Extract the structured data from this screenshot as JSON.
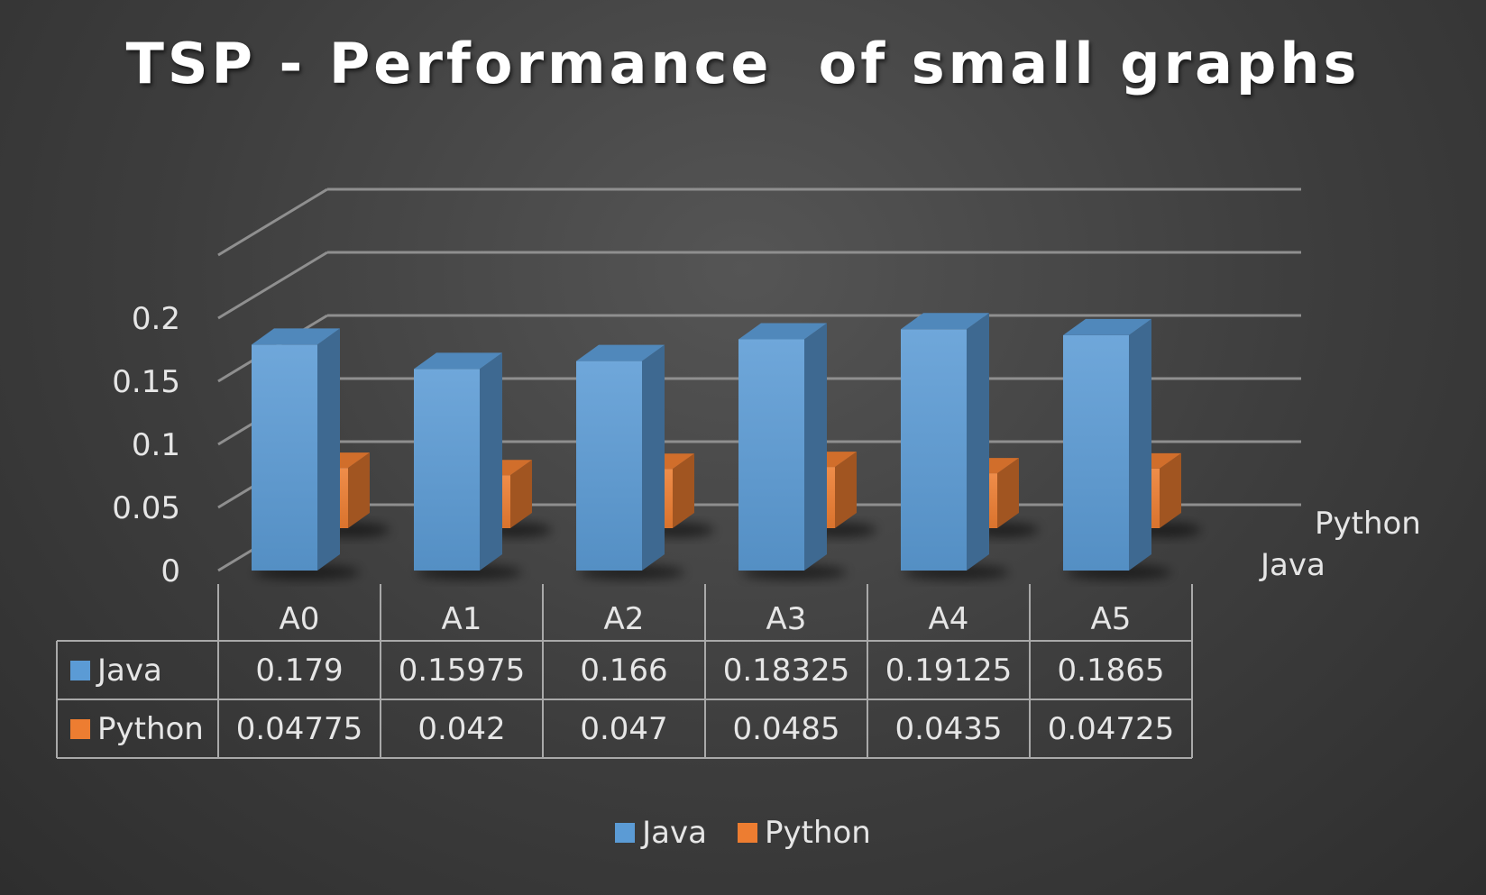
{
  "chart_data": {
    "type": "bar",
    "title": "TSP - Performance  of small graphs",
    "categories": [
      "A0",
      "A1",
      "A2",
      "A3",
      "A4",
      "A5"
    ],
    "series": [
      {
        "name": "Java",
        "values": [
          0.179,
          0.15975,
          0.166,
          0.18325,
          0.19125,
          0.1865
        ],
        "color": "#5b9bd5"
      },
      {
        "name": "Python",
        "values": [
          0.04775,
          0.042,
          0.047,
          0.0485,
          0.0435,
          0.04725
        ],
        "color": "#ed7d31"
      }
    ],
    "y_ticks": [
      "0",
      "0.05",
      "0.1",
      "0.15",
      "0.2"
    ],
    "ylim": [
      0,
      0.25
    ],
    "depth_labels": [
      "Python",
      "Java"
    ],
    "data_table": {
      "rows": [
        {
          "name": "Java",
          "values": [
            "0.179",
            "0.15975",
            "0.166",
            "0.18325",
            "0.19125",
            "0.1865"
          ]
        },
        {
          "name": "Python",
          "values": [
            "0.04775",
            "0.042",
            "0.047",
            "0.0485",
            "0.0435",
            "0.04725"
          ]
        }
      ]
    },
    "legend": [
      "Java",
      "Python"
    ],
    "legend_position": "bottom",
    "grid": true,
    "style": "3d-column"
  }
}
